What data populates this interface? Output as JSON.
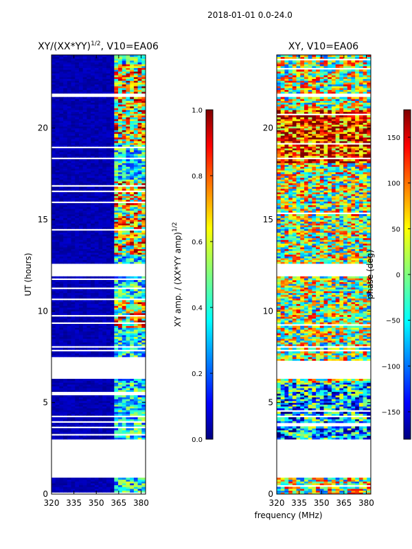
{
  "suptitle": "2018-01-01 0.0-24.0",
  "shared_xlabel": "frequency (MHz)",
  "chart_data": [
    {
      "type": "heatmap",
      "title_main": "XY/(XX*YY)",
      "title_exp": "1/2",
      "title_rest": ", V10=EA06",
      "ylabel": "UT (hours)",
      "xlim": [
        320,
        383
      ],
      "ylim": [
        0,
        24
      ],
      "xticks": [
        320,
        335,
        350,
        365,
        380
      ],
      "yticks": [
        0,
        5,
        10,
        15,
        20
      ],
      "colorbar": {
        "label_main": "XY amp. / (XX*YY amp)",
        "label_exp": "1/2",
        "range": [
          0,
          1
        ],
        "ticks": [
          "0.0",
          "0.2",
          "0.4",
          "0.6",
          "0.8",
          "1.0"
        ],
        "tick_values": [
          0,
          0.2,
          0.4,
          0.6,
          0.8,
          1.0
        ]
      },
      "bright_band_MHz": [
        360,
        383
      ],
      "colormap_stops": [
        "#00007f",
        "#0000ff",
        "#00ffff",
        "#7fff7f",
        "#ffff00",
        "#ff0000",
        "#7f0000"
      ]
    },
    {
      "type": "heatmap",
      "title_main": "XY, V10=EA06",
      "xlim": [
        320,
        383
      ],
      "ylim": [
        0,
        24
      ],
      "xticks": [
        320,
        335,
        350,
        365,
        380
      ],
      "yticks": [
        0,
        5,
        10,
        15,
        20
      ],
      "colorbar": {
        "label_main": "phase (deg)",
        "range": [
          -180,
          180
        ],
        "ticks": [
          "−150",
          "−100",
          "−50",
          "0",
          "50",
          "100",
          "150"
        ],
        "tick_values": [
          -150,
          -100,
          -50,
          0,
          50,
          100,
          150
        ]
      },
      "colormap_stops": [
        "#00007f",
        "#0000ff",
        "#00ffff",
        "#7fff7f",
        "#ffff00",
        "#ff0000",
        "#7f0000"
      ]
    }
  ]
}
